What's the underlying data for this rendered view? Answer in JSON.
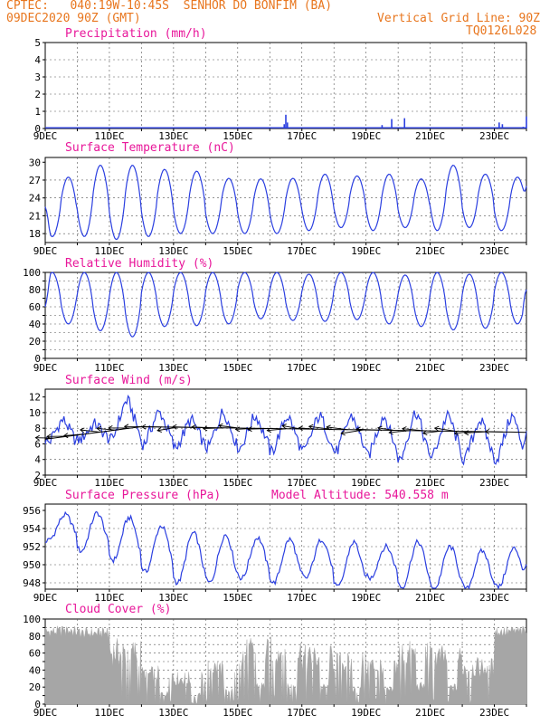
{
  "header": {
    "line1": "CPTEC:   040:19W-10:45S  SENHOR DO BONFIM (BA)",
    "line2": "09DEC2020 90Z (GMT)",
    "grid_line": "Vertical Grid Line: 90Z",
    "code": "TQ0126L028"
  },
  "colors": {
    "header": "#e8761e",
    "title": "#e8179a",
    "line": "#2b3fe0",
    "cloud": "#a6a6a6",
    "axis": "#000000"
  },
  "x_labels": [
    "9DEC",
    "11DEC",
    "13DEC",
    "15DEC",
    "17DEC",
    "19DEC",
    "21DEC",
    "23DEC"
  ],
  "model_altitude": "Model Altitude: 540.558 m",
  "chart_data": [
    {
      "type": "bar",
      "title": "Precipitation (mm/h)",
      "ylim": [
        0,
        5
      ],
      "yticks": [
        0,
        1,
        2,
        3,
        4,
        5
      ],
      "x_range_days": [
        0,
        15
      ],
      "spikes": [
        {
          "day": 7.45,
          "value": 0.25
        },
        {
          "day": 7.5,
          "value": 0.8
        },
        {
          "day": 7.55,
          "value": 0.35
        },
        {
          "day": 10.5,
          "value": 0.2
        },
        {
          "day": 10.8,
          "value": 0.55
        },
        {
          "day": 11.2,
          "value": 0.6
        },
        {
          "day": 14.15,
          "value": 0.35
        },
        {
          "day": 14.25,
          "value": 0.25
        },
        {
          "day": 14.9,
          "value": 0.1
        },
        {
          "day": 15.0,
          "value": 0.7
        }
      ]
    },
    {
      "type": "line",
      "title": "Surface Temperature (nC)",
      "ylim": [
        16.5,
        30.8
      ],
      "yticks": [
        18,
        21,
        24,
        27,
        30
      ],
      "daily_max": [
        27.5,
        29.5,
        29.5,
        28.8,
        28.5,
        27.3,
        27.2,
        27.3,
        28.0,
        27.7,
        28.0,
        27.2,
        29.5,
        28.0,
        27.5
      ],
      "daily_min": [
        17.5,
        17.5,
        17.0,
        17.5,
        18.0,
        18.0,
        18.0,
        18.0,
        18.5,
        19.0,
        18.5,
        19.0,
        18.5,
        19.0,
        18.5
      ],
      "start": 22.5,
      "end": 26.0
    },
    {
      "type": "line",
      "title": "Relative Humidity (%)",
      "ylim": [
        0,
        100
      ],
      "yticks": [
        0,
        10,
        20,
        30,
        40,
        50,
        60,
        70,
        80,
        90,
        100
      ],
      "ytick_labels": [
        0,
        20,
        40,
        60,
        80,
        100
      ],
      "daily_max": [
        100,
        100,
        100,
        100,
        100,
        100,
        100,
        100,
        98,
        100,
        100,
        97,
        100,
        98,
        100
      ],
      "daily_min": [
        40,
        32,
        25,
        37,
        38,
        40,
        46,
        44,
        43,
        45,
        40,
        37,
        33,
        35,
        40
      ],
      "start": 60,
      "end": 80
    },
    {
      "type": "line",
      "title": "Surface Wind (m/s)",
      "ylim": [
        2,
        13
      ],
      "yticks": [
        2,
        4,
        6,
        8,
        10,
        12
      ],
      "daily_max": [
        9.0,
        8.5,
        11.5,
        10.0,
        9.0,
        10.0,
        9.5,
        9.5,
        9.5,
        9.5,
        9.5,
        10.0,
        9.5,
        9.0,
        9.5
      ],
      "daily_min": [
        6.0,
        6.5,
        6.5,
        6.0,
        5.5,
        5.5,
        5.5,
        5.0,
        5.0,
        5.0,
        4.5,
        4.0,
        4.5,
        4.0,
        4.0
      ],
      "start": 6.5,
      "end": 8.0,
      "vectors": {
        "count": 30,
        "direction": "toward-west",
        "mean_speed": 7.8
      }
    },
    {
      "type": "line",
      "title": "Surface Pressure (hPa)",
      "ylim": [
        947.3,
        956.7
      ],
      "yticks": [
        948,
        950,
        952,
        954,
        956
      ],
      "daily_max": [
        955.5,
        955.7,
        955.2,
        954.3,
        953.5,
        953.3,
        953.0,
        952.8,
        952.8,
        952.5,
        952.0,
        952.5,
        952.0,
        951.5,
        951.8
      ],
      "daily_min": [
        952.8,
        951.5,
        950.5,
        949.2,
        948.0,
        948.0,
        948.5,
        948.0,
        948.5,
        947.5,
        948.5,
        947.5,
        947.2,
        947.3,
        947.5
      ],
      "start": 952.5,
      "end": 950.0
    },
    {
      "type": "area",
      "title": "Cloud Cover (%)",
      "ylim": [
        0,
        100
      ],
      "yticks": [
        0,
        10,
        20,
        30,
        40,
        50,
        60,
        70,
        80,
        90,
        100
      ],
      "ytick_labels": [
        0,
        20,
        40,
        60,
        80,
        100
      ],
      "envelope_by_day": [
        92,
        90,
        78,
        45,
        38,
        55,
        78,
        80,
        70,
        62,
        58,
        75,
        70,
        55,
        92
      ],
      "day_end": 92
    }
  ]
}
